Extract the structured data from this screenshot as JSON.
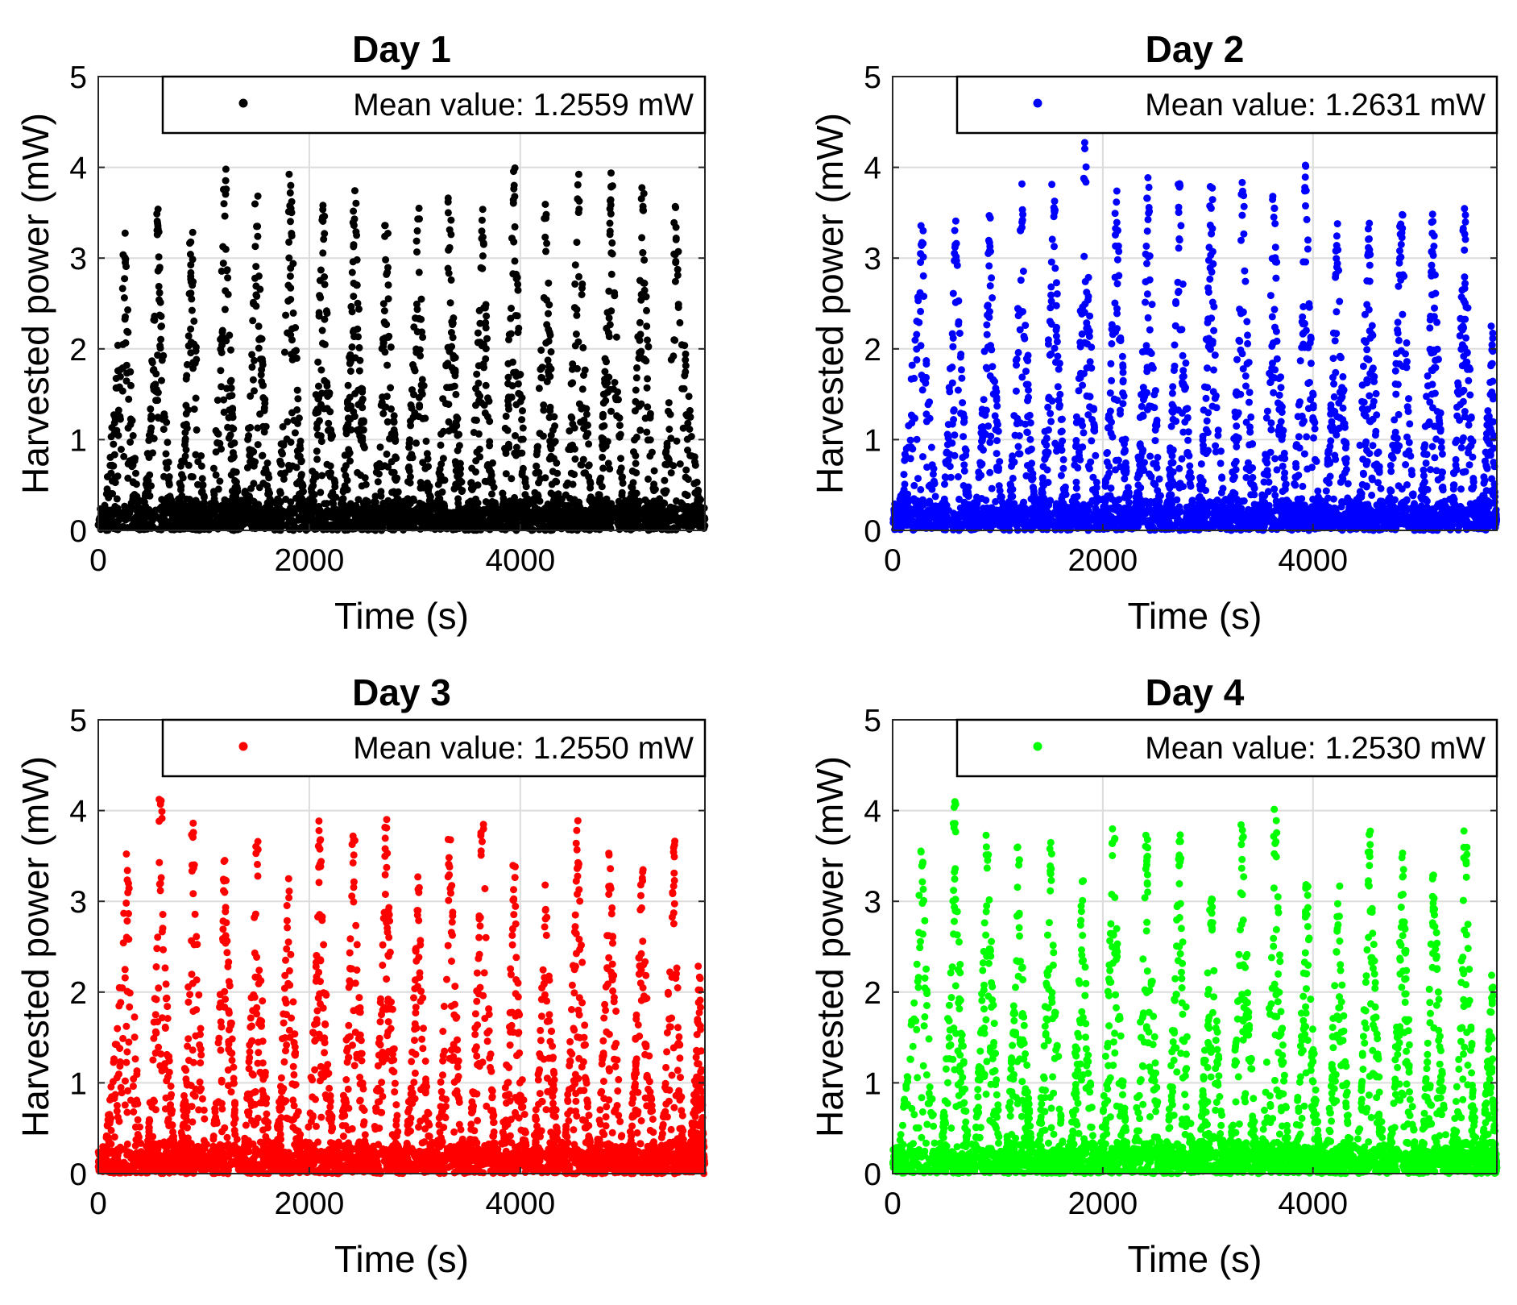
{
  "chart_data": [
    {
      "type": "scatter",
      "title": "Day 1",
      "xlabel": "Time (s)",
      "ylabel": "Harvested power (mW)",
      "xlim": [
        0,
        5750
      ],
      "ylim": [
        0,
        5
      ],
      "xticks": [
        0,
        2000,
        4000
      ],
      "yticks": [
        0,
        1,
        2,
        3,
        4,
        5
      ],
      "grid": true,
      "legend_placement": "top-right",
      "color": "#000000",
      "legend_label": "Mean value: 1.2559 mW",
      "series": [
        {
          "seed": 11,
          "peaks": [
            [
              250,
              3.3
            ],
            [
              560,
              3.6
            ],
            [
              880,
              3.3
            ],
            [
              1200,
              4.0
            ],
            [
              1500,
              3.7
            ],
            [
              1820,
              4.0
            ],
            [
              2130,
              3.8
            ],
            [
              2430,
              3.95
            ],
            [
              2730,
              3.4
            ],
            [
              3030,
              3.6
            ],
            [
              3330,
              3.7
            ],
            [
              3640,
              3.6
            ],
            [
              3940,
              4.05
            ],
            [
              4240,
              3.6
            ],
            [
              4550,
              4.05
            ],
            [
              4860,
              4.0
            ],
            [
              5160,
              3.8
            ],
            [
              5470,
              3.6
            ]
          ]
        }
      ]
    },
    {
      "type": "scatter",
      "title": "Day 2",
      "xlabel": "Time (s)",
      "ylabel": "Harvested power (mW)",
      "xlim": [
        0,
        5750
      ],
      "ylim": [
        0,
        5
      ],
      "xticks": [
        0,
        2000,
        4000
      ],
      "yticks": [
        0,
        1,
        2,
        3,
        4,
        5
      ],
      "grid": true,
      "legend_placement": "top-right",
      "color": "#0000ff",
      "legend_label": "Mean value: 1.2631 mW",
      "series": [
        {
          "seed": 23,
          "peaks": [
            [
              280,
              3.6
            ],
            [
              600,
              3.55
            ],
            [
              920,
              3.5
            ],
            [
              1230,
              3.9
            ],
            [
              1530,
              3.9
            ],
            [
              1830,
              4.3
            ],
            [
              2130,
              3.9
            ],
            [
              2430,
              4.0
            ],
            [
              2730,
              3.9
            ],
            [
              3030,
              3.85
            ],
            [
              3330,
              3.85
            ],
            [
              3630,
              3.8
            ],
            [
              3930,
              4.05
            ],
            [
              4230,
              3.4
            ],
            [
              4530,
              3.6
            ],
            [
              4840,
              3.75
            ],
            [
              5140,
              3.6
            ],
            [
              5440,
              3.8
            ],
            [
              5700,
              2.4
            ]
          ]
        }
      ]
    },
    {
      "type": "scatter",
      "title": "Day 3",
      "xlabel": "Time (s)",
      "ylabel": "Harvested power (mW)",
      "xlim": [
        0,
        5750
      ],
      "ylim": [
        0,
        5
      ],
      "xticks": [
        0,
        2000,
        4000
      ],
      "yticks": [
        0,
        1,
        2,
        3,
        4,
        5
      ],
      "grid": true,
      "legend_placement": "top-right",
      "color": "#ff0000",
      "legend_label": "Mean value: 1.2550 mW",
      "series": [
        {
          "seed": 37,
          "peaks": [
            [
              280,
              3.65
            ],
            [
              590,
              4.15
            ],
            [
              900,
              3.95
            ],
            [
              1200,
              3.6
            ],
            [
              1500,
              3.7
            ],
            [
              1800,
              3.3
            ],
            [
              2100,
              3.9
            ],
            [
              2420,
              3.75
            ],
            [
              2730,
              3.95
            ],
            [
              3030,
              3.3
            ],
            [
              3330,
              3.85
            ],
            [
              3640,
              4.1
            ],
            [
              3940,
              3.4
            ],
            [
              4240,
              3.2
            ],
            [
              4540,
              3.9
            ],
            [
              4850,
              3.6
            ],
            [
              5150,
              3.5
            ],
            [
              5450,
              3.8
            ],
            [
              5700,
              2.3
            ]
          ]
        }
      ]
    },
    {
      "type": "scatter",
      "title": "Day 4",
      "xlabel": "Time (s)",
      "ylabel": "Harvested power (mW)",
      "xlim": [
        0,
        5750
      ],
      "ylim": [
        0,
        5
      ],
      "xticks": [
        0,
        2000,
        4000
      ],
      "yticks": [
        0,
        1,
        2,
        3,
        4,
        5
      ],
      "grid": true,
      "legend_placement": "top-right",
      "color": "#00ff00",
      "legend_label": "Mean value: 1.2530 mW",
      "series": [
        {
          "seed": 53,
          "peaks": [
            [
              280,
              3.65
            ],
            [
              590,
              4.15
            ],
            [
              900,
              3.95
            ],
            [
              1200,
              3.6
            ],
            [
              1500,
              3.7
            ],
            [
              1800,
              3.3
            ],
            [
              2100,
              3.9
            ],
            [
              2420,
              3.75
            ],
            [
              2730,
              3.95
            ],
            [
              3030,
              3.3
            ],
            [
              3330,
              3.85
            ],
            [
              3640,
              4.1
            ],
            [
              3940,
              3.4
            ],
            [
              4240,
              3.2
            ],
            [
              4540,
              3.9
            ],
            [
              4850,
              3.6
            ],
            [
              5150,
              3.5
            ],
            [
              5450,
              3.8
            ],
            [
              5700,
              2.3
            ]
          ]
        }
      ]
    }
  ]
}
